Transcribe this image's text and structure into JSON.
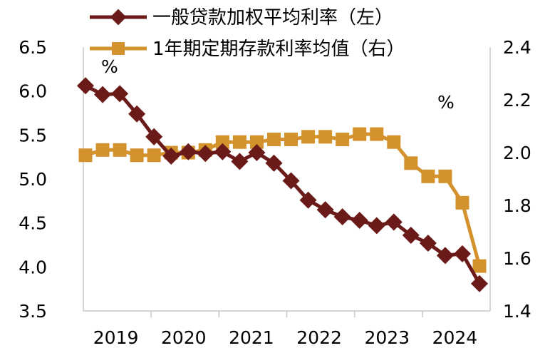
{
  "chart_data": {
    "type": "line",
    "title": "",
    "x": [
      "2019Q1",
      "2019Q2",
      "2019Q3",
      "2019Q4",
      "2020Q1",
      "2020Q2",
      "2020Q3",
      "2020Q4",
      "2021Q1",
      "2021Q2",
      "2021Q3",
      "2021Q4",
      "2022Q1",
      "2022Q2",
      "2022Q3",
      "2022Q4",
      "2023Q1",
      "2023Q2",
      "2023Q3",
      "2023Q4",
      "2024Q1",
      "2024Q2",
      "2024Q3",
      "2024Q4"
    ],
    "x_tick_labels": [
      "2019",
      "2020",
      "2021",
      "2022",
      "2023",
      "2024"
    ],
    "left_axis": {
      "unit": "%",
      "ylim": [
        3.5,
        6.5
      ],
      "ticks": [
        "6.5",
        "6.0",
        "5.5",
        "5.0",
        "4.5",
        "4.0",
        "3.5"
      ]
    },
    "right_axis": {
      "unit": "%",
      "ylim": [
        1.4,
        2.4
      ],
      "ticks": [
        "2.4",
        "2.2",
        "2.0",
        "1.8",
        "1.6",
        "1.4"
      ]
    },
    "series": [
      {
        "name": "一般贷款加权平均利率（左）",
        "axis": "left",
        "color": "#6B1A1A",
        "marker": "diamond",
        "values": [
          6.06,
          5.96,
          5.97,
          5.74,
          5.48,
          5.26,
          5.31,
          5.29,
          5.31,
          5.2,
          5.3,
          5.18,
          4.98,
          4.76,
          4.65,
          4.57,
          4.53,
          4.47,
          4.51,
          4.36,
          4.27,
          4.13,
          4.15,
          3.81
        ]
      },
      {
        "name": "1年期定期存款利率均值（右）",
        "axis": "right",
        "color": "#D4922C",
        "marker": "square",
        "values": [
          1.99,
          2.01,
          2.01,
          1.99,
          1.99,
          2.0,
          2.0,
          2.01,
          2.04,
          2.04,
          2.04,
          2.05,
          2.05,
          2.06,
          2.06,
          2.05,
          2.07,
          2.07,
          2.04,
          1.96,
          1.91,
          1.91,
          1.81,
          1.57
        ]
      }
    ]
  }
}
